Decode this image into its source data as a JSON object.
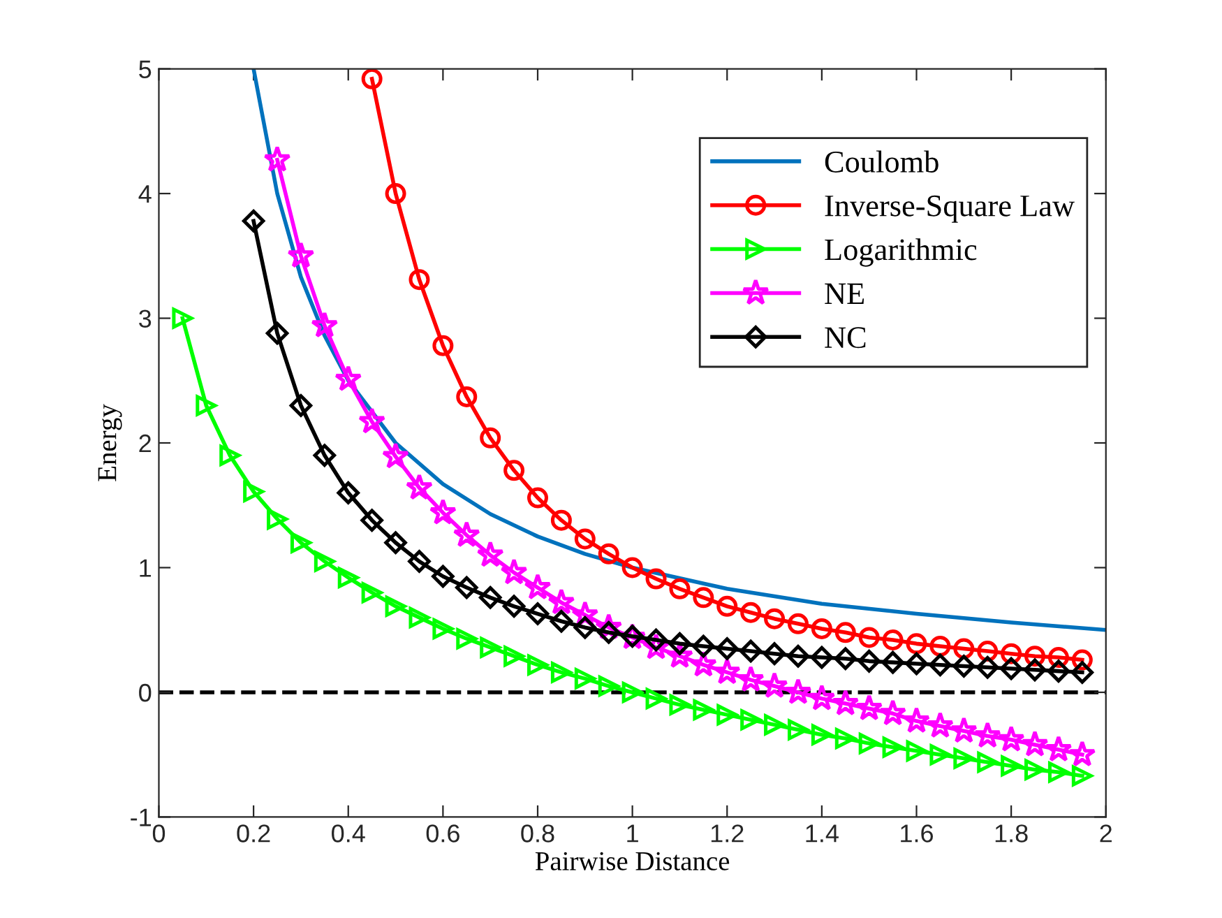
{
  "chart_data": {
    "type": "line",
    "xlabel": "Pairwise Distance",
    "ylabel": "Energy",
    "xlim": [
      0,
      2
    ],
    "ylim": [
      -1,
      5
    ],
    "xticks": [
      0,
      0.2,
      0.4,
      0.6,
      0.8,
      1,
      1.2,
      1.4,
      1.6,
      1.8,
      2
    ],
    "yticks": [
      -1,
      0,
      1,
      2,
      3,
      4,
      5
    ],
    "grid": false,
    "legend": "top right",
    "line_style": "solid",
    "ref_lines": [
      {
        "axis": "y",
        "value": 0,
        "color": "#000000",
        "line_style": "dashed"
      }
    ],
    "series": [
      {
        "name": "Coulomb",
        "color": "#0072bd",
        "marker": "none",
        "x": [
          0.2,
          0.25,
          0.3,
          0.35,
          0.4,
          0.5,
          0.6,
          0.7,
          0.8,
          0.9,
          1,
          1.2,
          1.4,
          1.6,
          1.8,
          2
        ],
        "values": [
          5,
          4,
          3.33,
          2.86,
          2.5,
          2,
          1.67,
          1.43,
          1.25,
          1.11,
          1,
          0.83,
          0.71,
          0.63,
          0.56,
          0.5
        ]
      },
      {
        "name": "Inverse-Square Law",
        "color": "#ff0000",
        "marker": "circle",
        "x": [
          0.45,
          0.5,
          0.55,
          0.6,
          0.65,
          0.7,
          0.75,
          0.8,
          0.85,
          0.9,
          0.95,
          1,
          1.05,
          1.1,
          1.15,
          1.2,
          1.25,
          1.3,
          1.35,
          1.4,
          1.45,
          1.5,
          1.55,
          1.6,
          1.65,
          1.7,
          1.75,
          1.8,
          1.85,
          1.9,
          1.95
        ],
        "values": [
          4.92,
          4,
          3.31,
          2.78,
          2.37,
          2.04,
          1.78,
          1.56,
          1.38,
          1.23,
          1.11,
          1,
          0.91,
          0.83,
          0.76,
          0.69,
          0.64,
          0.59,
          0.55,
          0.51,
          0.48,
          0.44,
          0.42,
          0.39,
          0.37,
          0.35,
          0.33,
          0.31,
          0.29,
          0.28,
          0.26
        ]
      },
      {
        "name": "Logarithmic",
        "color": "#00ff00",
        "marker": "triangle",
        "x": [
          0.05,
          0.1,
          0.15,
          0.2,
          0.25,
          0.3,
          0.35,
          0.4,
          0.45,
          0.5,
          0.55,
          0.6,
          0.65,
          0.7,
          0.75,
          0.8,
          0.85,
          0.9,
          0.95,
          1,
          1.05,
          1.1,
          1.15,
          1.2,
          1.25,
          1.3,
          1.35,
          1.4,
          1.45,
          1.5,
          1.55,
          1.6,
          1.65,
          1.7,
          1.75,
          1.8,
          1.85,
          1.9,
          1.95
        ],
        "values": [
          3.0,
          2.3,
          1.9,
          1.61,
          1.39,
          1.2,
          1.05,
          0.92,
          0.8,
          0.69,
          0.6,
          0.51,
          0.43,
          0.36,
          0.29,
          0.22,
          0.16,
          0.11,
          0.05,
          0,
          -0.05,
          -0.1,
          -0.14,
          -0.18,
          -0.22,
          -0.26,
          -0.3,
          -0.34,
          -0.37,
          -0.41,
          -0.44,
          -0.47,
          -0.5,
          -0.53,
          -0.56,
          -0.59,
          -0.62,
          -0.64,
          -0.67
        ]
      },
      {
        "name": "NE",
        "color": "#ff00ff",
        "marker": "star",
        "x": [
          0.25,
          0.3,
          0.35,
          0.4,
          0.45,
          0.5,
          0.55,
          0.6,
          0.65,
          0.7,
          0.75,
          0.8,
          0.85,
          0.9,
          0.95,
          1,
          1.05,
          1.1,
          1.15,
          1.2,
          1.25,
          1.3,
          1.35,
          1.4,
          1.45,
          1.5,
          1.55,
          1.6,
          1.65,
          1.7,
          1.75,
          1.8,
          1.85,
          1.9,
          1.95
        ],
        "values": [
          4.27,
          3.5,
          2.94,
          2.51,
          2.17,
          1.89,
          1.64,
          1.44,
          1.26,
          1.1,
          0.96,
          0.84,
          0.72,
          0.62,
          0.52,
          0.44,
          0.36,
          0.29,
          0.22,
          0.16,
          0.1,
          0.05,
          0,
          -0.05,
          -0.09,
          -0.13,
          -0.17,
          -0.23,
          -0.27,
          -0.31,
          -0.35,
          -0.38,
          -0.42,
          -0.46,
          -0.5
        ]
      },
      {
        "name": "NC",
        "color": "#000000",
        "marker": "diamond",
        "x": [
          0.2,
          0.25,
          0.3,
          0.35,
          0.4,
          0.45,
          0.5,
          0.55,
          0.6,
          0.65,
          0.7,
          0.75,
          0.8,
          0.85,
          0.9,
          0.95,
          1,
          1.05,
          1.1,
          1.15,
          1.2,
          1.25,
          1.3,
          1.35,
          1.4,
          1.45,
          1.5,
          1.55,
          1.6,
          1.65,
          1.7,
          1.75,
          1.8,
          1.85,
          1.9,
          1.95
        ],
        "values": [
          3.78,
          2.88,
          2.3,
          1.9,
          1.6,
          1.38,
          1.2,
          1.05,
          0.93,
          0.84,
          0.76,
          0.69,
          0.63,
          0.57,
          0.52,
          0.48,
          0.45,
          0.42,
          0.39,
          0.37,
          0.35,
          0.33,
          0.31,
          0.29,
          0.28,
          0.27,
          0.25,
          0.24,
          0.23,
          0.22,
          0.21,
          0.2,
          0.19,
          0.18,
          0.17,
          0.16
        ]
      }
    ]
  }
}
